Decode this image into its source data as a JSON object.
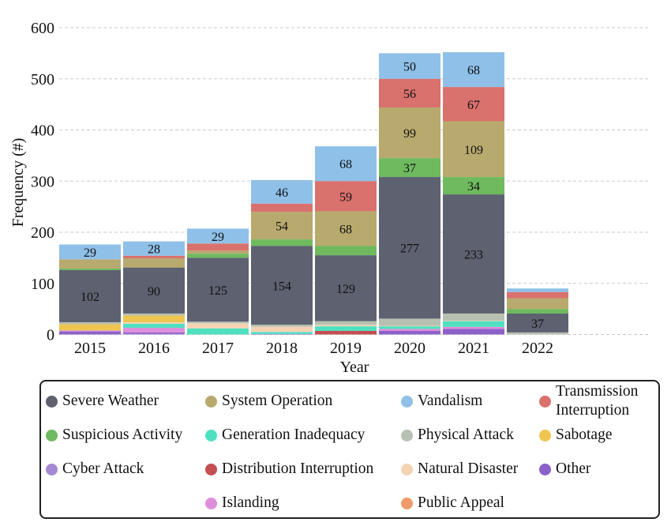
{
  "chart_data": {
    "type": "bar",
    "stacked": true,
    "categories": [
      "2015",
      "2016",
      "2017",
      "2018",
      "2019",
      "2020",
      "2021",
      "2022"
    ],
    "xlabel": "Year",
    "ylabel": "Frequency (#)",
    "ylim": [
      0,
      600
    ],
    "yticks": [
      0,
      100,
      200,
      300,
      400,
      500,
      600
    ],
    "grid": "horizontal dashed",
    "legend_position": "bottom",
    "series": [
      {
        "name": "Cyber Attack",
        "color": "#a48ad3",
        "values": [
          0,
          1,
          0,
          0,
          0,
          0,
          0,
          0
        ]
      },
      {
        "name": "Distribution Interruption",
        "color": "#c44e52",
        "values": [
          0,
          0,
          0,
          0,
          7,
          0,
          0,
          0
        ]
      },
      {
        "name": "Other",
        "color": "#8c61c9",
        "values": [
          6,
          3,
          0,
          1,
          0,
          7,
          11,
          0
        ]
      },
      {
        "name": "Islanding",
        "color": "#dd8fdb",
        "values": [
          2,
          9,
          0,
          0,
          0,
          4,
          4,
          0
        ]
      },
      {
        "name": "Public Appeal",
        "color": "#ee9a6a",
        "values": [
          0,
          0,
          0,
          0,
          0,
          0,
          0,
          0
        ]
      },
      {
        "name": "Generation Inadequacy",
        "color": "#4fe0c0",
        "values": [
          0,
          8,
          12,
          4,
          9,
          5,
          11,
          0
        ]
      },
      {
        "name": "Natural Disaster",
        "color": "#f3d3b3",
        "values": [
          0,
          3,
          10,
          10,
          3,
          1,
          1,
          0
        ]
      },
      {
        "name": "Sabotage",
        "color": "#eec54f",
        "values": [
          12,
          13,
          0,
          0,
          0,
          0,
          0,
          0
        ]
      },
      {
        "name": "Physical Attack",
        "color": "#b7c1b2",
        "values": [
          4,
          4,
          3,
          4,
          7,
          14,
          14,
          4
        ]
      },
      {
        "name": "Severe Weather",
        "color": "#5d6170",
        "values": [
          102,
          90,
          125,
          154,
          129,
          277,
          233,
          37
        ]
      },
      {
        "name": "Suspicious Activity",
        "color": "#6fba5f",
        "values": [
          3,
          0,
          8,
          13,
          18,
          37,
          34,
          9
        ]
      },
      {
        "name": "System Operation",
        "color": "#b8a96e",
        "values": [
          18,
          18,
          6,
          54,
          68,
          99,
          109,
          21
        ]
      },
      {
        "name": "Transmission Interruption",
        "color": "#d9716d",
        "values": [
          0,
          5,
          14,
          16,
          59,
          56,
          67,
          12
        ]
      },
      {
        "name": "Vandalism",
        "color": "#8fc0e8",
        "values": [
          29,
          28,
          29,
          46,
          68,
          50,
          68,
          7
        ]
      }
    ],
    "data_labels": [
      {
        "category": "2015",
        "series": "Severe Weather",
        "text": "102"
      },
      {
        "category": "2015",
        "series": "Vandalism",
        "text": "29"
      },
      {
        "category": "2016",
        "series": "Severe Weather",
        "text": "90"
      },
      {
        "category": "2016",
        "series": "Vandalism",
        "text": "28"
      },
      {
        "category": "2017",
        "series": "Severe Weather",
        "text": "125"
      },
      {
        "category": "2017",
        "series": "Vandalism",
        "text": "29"
      },
      {
        "category": "2018",
        "series": "Severe Weather",
        "text": "154"
      },
      {
        "category": "2018",
        "series": "System Operation",
        "text": "54"
      },
      {
        "category": "2018",
        "series": "Vandalism",
        "text": "46"
      },
      {
        "category": "2019",
        "series": "Severe Weather",
        "text": "129"
      },
      {
        "category": "2019",
        "series": "System Operation",
        "text": "68"
      },
      {
        "category": "2019",
        "series": "Transmission Interruption",
        "text": "59"
      },
      {
        "category": "2019",
        "series": "Vandalism",
        "text": "68"
      },
      {
        "category": "2020",
        "series": "Severe Weather",
        "text": "277"
      },
      {
        "category": "2020",
        "series": "Suspicious Activity",
        "text": "37"
      },
      {
        "category": "2020",
        "series": "System Operation",
        "text": "99"
      },
      {
        "category": "2020",
        "series": "Transmission Interruption",
        "text": "56"
      },
      {
        "category": "2020",
        "series": "Vandalism",
        "text": "50"
      },
      {
        "category": "2021",
        "series": "Severe Weather",
        "text": "233"
      },
      {
        "category": "2021",
        "series": "Suspicious Activity",
        "text": "34"
      },
      {
        "category": "2021",
        "series": "System Operation",
        "text": "109"
      },
      {
        "category": "2021",
        "series": "Transmission Interruption",
        "text": "67"
      },
      {
        "category": "2021",
        "series": "Vandalism",
        "text": "68"
      },
      {
        "category": "2022",
        "series": "Severe Weather",
        "text": "37"
      }
    ]
  },
  "legend": {
    "items": [
      {
        "label": "Severe Weather",
        "color": "#5d6170"
      },
      {
        "label": "System Operation",
        "color": "#b8a96e"
      },
      {
        "label": "Vandalism",
        "color": "#8fc0e8"
      },
      {
        "label": "Transmission\nInterruption",
        "color": "#d9716d"
      },
      {
        "label": "Suspicious Activity",
        "color": "#6fba5f"
      },
      {
        "label": "Generation Inadequacy",
        "color": "#4fe0c0"
      },
      {
        "label": "Physical Attack",
        "color": "#b7c1b2"
      },
      {
        "label": "Sabotage",
        "color": "#eec54f"
      },
      {
        "label": "Cyber Attack",
        "color": "#a48ad3"
      },
      {
        "label": "Distribution Interruption",
        "color": "#c44e52"
      },
      {
        "label": "Natural Disaster",
        "color": "#f3d3b3"
      },
      {
        "label": "Other",
        "color": "#8c61c9"
      },
      {
        "label": "Islanding",
        "color": "#dd8fdb"
      },
      {
        "label": "Public Appeal",
        "color": "#ee9a6a"
      }
    ]
  }
}
